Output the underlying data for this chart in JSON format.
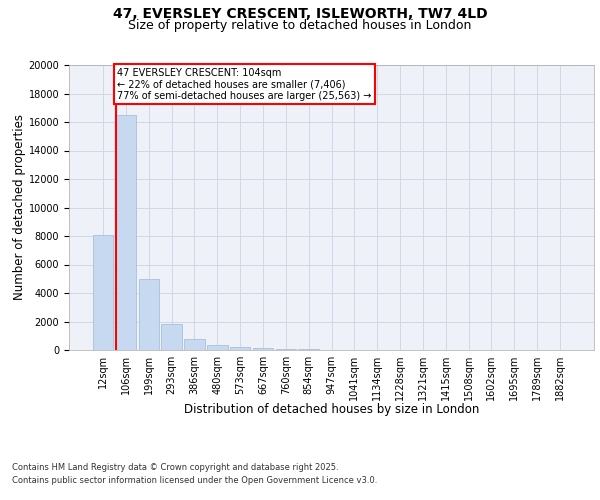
{
  "title_line1": "47, EVERSLEY CRESCENT, ISLEWORTH, TW7 4LD",
  "title_line2": "Size of property relative to detached houses in London",
  "xlabel": "Distribution of detached houses by size in London",
  "ylabel": "Number of detached properties",
  "categories": [
    "12sqm",
    "106sqm",
    "199sqm",
    "293sqm",
    "386sqm",
    "480sqm",
    "573sqm",
    "667sqm",
    "760sqm",
    "854sqm",
    "947sqm",
    "1041sqm",
    "1134sqm",
    "1228sqm",
    "1321sqm",
    "1415sqm",
    "1508sqm",
    "1602sqm",
    "1695sqm",
    "1789sqm",
    "1882sqm"
  ],
  "values": [
    8100,
    16500,
    5000,
    1850,
    750,
    380,
    200,
    130,
    80,
    50,
    0,
    0,
    0,
    0,
    0,
    0,
    0,
    0,
    0,
    0,
    0
  ],
  "bar_color": "#c6d9f0",
  "bar_edge_color": "#a0b8d8",
  "red_line_index": 1,
  "annotation_text": "47 EVERSLEY CRESCENT: 104sqm\n← 22% of detached houses are smaller (7,406)\n77% of semi-detached houses are larger (25,563) →",
  "annotation_box_color": "white",
  "annotation_box_edge_color": "red",
  "red_line_color": "red",
  "ylim": [
    0,
    20000
  ],
  "yticks": [
    0,
    2000,
    4000,
    6000,
    8000,
    10000,
    12000,
    14000,
    16000,
    18000,
    20000
  ],
  "grid_color": "#d0d8e8",
  "background_color": "#eef2f8",
  "footnote1": "Contains HM Land Registry data © Crown copyright and database right 2025.",
  "footnote2": "Contains public sector information licensed under the Open Government Licence v3.0.",
  "title_fontsize": 10,
  "subtitle_fontsize": 9,
  "tick_fontsize": 7,
  "label_fontsize": 8.5
}
